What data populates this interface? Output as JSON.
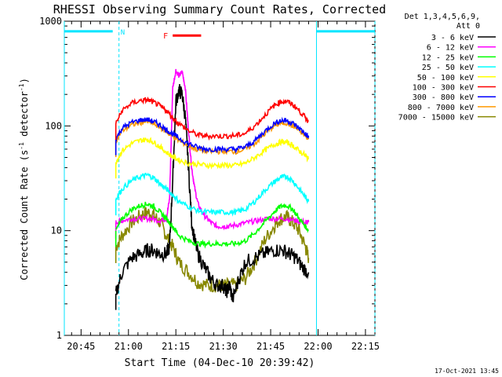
{
  "chart_data": {
    "type": "line",
    "title": "RHESSI Observing Summary Count Rates, Corrected",
    "xlabel": "Start Time (04-Dec-10 20:39:42)",
    "ylabel": "Corrected Count Rate (s",
    "ylabel_sup1": "-1",
    "ylabel_mid": " detector",
    "ylabel_sup2": "-1",
    "ylabel_end": ")",
    "y_scale": "log",
    "ylim": [
      1,
      1000
    ],
    "y_ticks": [
      {
        "value": 1,
        "label": "1"
      },
      {
        "value": 10,
        "label": "10"
      },
      {
        "value": 100,
        "label": "100"
      },
      {
        "value": 1000,
        "label": "1000"
      }
    ],
    "xlim_minutes": [
      39.7,
      138.0
    ],
    "x_ticks": [
      {
        "minute": 45,
        "label": "20:45"
      },
      {
        "minute": 60,
        "label": "21:00"
      },
      {
        "minute": 75,
        "label": "21:15"
      },
      {
        "minute": 90,
        "label": "21:30"
      },
      {
        "minute": 105,
        "label": "21:45"
      },
      {
        "minute": 120,
        "label": "22:00"
      },
      {
        "minute": 135,
        "label": "22:15"
      }
    ],
    "legend_placement": "top-right",
    "legend_header": [
      "Det 1,3,4,5,6,9,",
      "Att 0"
    ],
    "footer_date": "17-Oct-2021 13:45",
    "night_flag": {
      "label": "N",
      "color": "#00e5ff",
      "start": [
        39.7,
        57.0
      ],
      "end": [
        119.5,
        138.0
      ],
      "level": 800
    },
    "flare_flag": {
      "label": "F",
      "color": "#ff0000",
      "start": 74.0,
      "end": 83.0,
      "level": 730
    },
    "data_interval": [
      56.0,
      120.0
    ],
    "series": [
      {
        "name": "3 - 6 keV",
        "color": "#000000",
        "points": [
          [
            56,
            2.5
          ],
          [
            58,
            4
          ],
          [
            61,
            5.5
          ],
          [
            64,
            6
          ],
          [
            66,
            6.5
          ],
          [
            68,
            6.5
          ],
          [
            70,
            6
          ],
          [
            72,
            6
          ],
          [
            73,
            7
          ],
          [
            74,
            30
          ],
          [
            75,
            170
          ],
          [
            76,
            220
          ],
          [
            77,
            200
          ],
          [
            78,
            120
          ],
          [
            79,
            40
          ],
          [
            80,
            12
          ],
          [
            81,
            8
          ],
          [
            82,
            6
          ],
          [
            84,
            4.5
          ],
          [
            86,
            3.5
          ],
          [
            88,
            3
          ],
          [
            90,
            3
          ],
          [
            91,
            2.6
          ],
          [
            92,
            3
          ],
          [
            93,
            2.2
          ],
          [
            95,
            3.5
          ],
          [
            97,
            5
          ],
          [
            100,
            5.5
          ],
          [
            103,
            6
          ],
          [
            106,
            6.5
          ],
          [
            109,
            6.5
          ],
          [
            111,
            6
          ],
          [
            113,
            5.5
          ],
          [
            115,
            4.5
          ],
          [
            117,
            4
          ]
        ]
      },
      {
        "name": "6 - 12 keV",
        "color": "#ff00ff",
        "points": [
          [
            56,
            12
          ],
          [
            58,
            12.5
          ],
          [
            61,
            13
          ],
          [
            64,
            13
          ],
          [
            67,
            13
          ],
          [
            70,
            12.5
          ],
          [
            72,
            13
          ],
          [
            73,
            20
          ],
          [
            74,
            230
          ],
          [
            75,
            340
          ],
          [
            76,
            300
          ],
          [
            77,
            330
          ],
          [
            78,
            230
          ],
          [
            79,
            90
          ],
          [
            80,
            40
          ],
          [
            81,
            25
          ],
          [
            82,
            18
          ],
          [
            84,
            14
          ],
          [
            86,
            12
          ],
          [
            88,
            11
          ],
          [
            90,
            11
          ],
          [
            92,
            11
          ],
          [
            95,
            11.5
          ],
          [
            98,
            12
          ],
          [
            101,
            12.5
          ],
          [
            104,
            13
          ],
          [
            107,
            13
          ],
          [
            110,
            13
          ],
          [
            113,
            12.5
          ],
          [
            116,
            12
          ],
          [
            117,
            12
          ]
        ]
      },
      {
        "name": "12 - 25 keV",
        "color": "#00ff00",
        "points": [
          [
            56,
            10
          ],
          [
            58,
            13
          ],
          [
            61,
            16
          ],
          [
            64,
            17.5
          ],
          [
            66,
            18
          ],
          [
            68,
            17
          ],
          [
            70,
            15
          ],
          [
            72,
            13
          ],
          [
            74,
            11
          ],
          [
            76,
            9
          ],
          [
            79,
            8
          ],
          [
            82,
            7.5
          ],
          [
            85,
            7.5
          ],
          [
            88,
            7.5
          ],
          [
            91,
            7.5
          ],
          [
            94,
            7.5
          ],
          [
            97,
            8
          ],
          [
            100,
            9.5
          ],
          [
            103,
            12
          ],
          [
            106,
            15
          ],
          [
            108,
            17
          ],
          [
            110,
            17.5
          ],
          [
            112,
            16
          ],
          [
            114,
            13
          ],
          [
            116,
            11
          ],
          [
            117,
            10
          ]
        ]
      },
      {
        "name": "25 - 50 keV",
        "color": "#00ffff",
        "points": [
          [
            56,
            20
          ],
          [
            58,
            25
          ],
          [
            61,
            30
          ],
          [
            64,
            33
          ],
          [
            66,
            34
          ],
          [
            68,
            32
          ],
          [
            70,
            28
          ],
          [
            72,
            25
          ],
          [
            74,
            22
          ],
          [
            76,
            19
          ],
          [
            79,
            17
          ],
          [
            82,
            15.5
          ],
          [
            85,
            15
          ],
          [
            88,
            15
          ],
          [
            91,
            15
          ],
          [
            94,
            15
          ],
          [
            97,
            16
          ],
          [
            100,
            19
          ],
          [
            103,
            24
          ],
          [
            106,
            29
          ],
          [
            108,
            32
          ],
          [
            110,
            33
          ],
          [
            112,
            30
          ],
          [
            114,
            25
          ],
          [
            116,
            21
          ],
          [
            117,
            19
          ]
        ]
      },
      {
        "name": "50 - 100 keV",
        "color": "#ffff00",
        "points": [
          [
            56,
            45
          ],
          [
            58,
            58
          ],
          [
            61,
            68
          ],
          [
            64,
            73
          ],
          [
            66,
            74
          ],
          [
            68,
            70
          ],
          [
            70,
            63
          ],
          [
            72,
            56
          ],
          [
            74,
            51
          ],
          [
            76,
            47
          ],
          [
            79,
            44
          ],
          [
            82,
            43
          ],
          [
            85,
            42
          ],
          [
            88,
            42
          ],
          [
            91,
            42
          ],
          [
            94,
            42
          ],
          [
            97,
            44
          ],
          [
            100,
            50
          ],
          [
            103,
            58
          ],
          [
            106,
            66
          ],
          [
            108,
            70
          ],
          [
            110,
            70
          ],
          [
            112,
            65
          ],
          [
            114,
            58
          ],
          [
            116,
            52
          ],
          [
            117,
            48
          ]
        ]
      },
      {
        "name": "100 - 300 keV",
        "color": "#ff0000",
        "points": [
          [
            56,
            105
          ],
          [
            58,
            140
          ],
          [
            61,
            165
          ],
          [
            64,
            175
          ],
          [
            66,
            177
          ],
          [
            68,
            168
          ],
          [
            70,
            155
          ],
          [
            72,
            140
          ],
          [
            74,
            120
          ],
          [
            76,
            105
          ],
          [
            79,
            90
          ],
          [
            82,
            82
          ],
          [
            85,
            80
          ],
          [
            88,
            80
          ],
          [
            91,
            80
          ],
          [
            94,
            81
          ],
          [
            97,
            85
          ],
          [
            100,
            100
          ],
          [
            103,
            125
          ],
          [
            106,
            155
          ],
          [
            108,
            170
          ],
          [
            110,
            172
          ],
          [
            112,
            160
          ],
          [
            114,
            140
          ],
          [
            116,
            120
          ],
          [
            117,
            110
          ]
        ]
      },
      {
        "name": "300 - 800 keV",
        "color": "#0000ff",
        "points": [
          [
            56,
            75
          ],
          [
            58,
            95
          ],
          [
            61,
            108
          ],
          [
            64,
            114
          ],
          [
            66,
            115
          ],
          [
            68,
            110
          ],
          [
            70,
            102
          ],
          [
            72,
            92
          ],
          [
            74,
            84
          ],
          [
            76,
            76
          ],
          [
            79,
            68
          ],
          [
            82,
            62
          ],
          [
            85,
            60
          ],
          [
            88,
            60
          ],
          [
            91,
            60
          ],
          [
            94,
            60
          ],
          [
            97,
            63
          ],
          [
            100,
            72
          ],
          [
            103,
            88
          ],
          [
            106,
            105
          ],
          [
            108,
            112
          ],
          [
            110,
            113
          ],
          [
            112,
            106
          ],
          [
            114,
            95
          ],
          [
            116,
            84
          ],
          [
            117,
            78
          ]
        ]
      },
      {
        "name": "800 - 7000 keV",
        "color": "#ff9900",
        "points": [
          [
            56,
            72
          ],
          [
            58,
            90
          ],
          [
            61,
            102
          ],
          [
            64,
            108
          ],
          [
            66,
            110
          ],
          [
            68,
            105
          ],
          [
            70,
            97
          ],
          [
            72,
            88
          ],
          [
            74,
            80
          ],
          [
            76,
            72
          ],
          [
            79,
            65
          ],
          [
            82,
            59
          ],
          [
            85,
            57
          ],
          [
            88,
            57
          ],
          [
            91,
            57
          ],
          [
            94,
            57
          ],
          [
            97,
            60
          ],
          [
            100,
            68
          ],
          [
            103,
            83
          ],
          [
            106,
            100
          ],
          [
            108,
            106
          ],
          [
            110,
            107
          ],
          [
            112,
            100
          ],
          [
            114,
            90
          ],
          [
            116,
            80
          ],
          [
            117,
            75
          ]
        ]
      },
      {
        "name": "7000 - 15000 keV",
        "color": "#888800",
        "points": [
          [
            56,
            7
          ],
          [
            58,
            9
          ],
          [
            61,
            12
          ],
          [
            64,
            14
          ],
          [
            66,
            15
          ],
          [
            68,
            14
          ],
          [
            70,
            12
          ],
          [
            72,
            9
          ],
          [
            74,
            7
          ],
          [
            76,
            5
          ],
          [
            79,
            4
          ],
          [
            82,
            3.2
          ],
          [
            85,
            3
          ],
          [
            88,
            3
          ],
          [
            91,
            3
          ],
          [
            94,
            3
          ],
          [
            97,
            3.5
          ],
          [
            100,
            5
          ],
          [
            103,
            8
          ],
          [
            106,
            11
          ],
          [
            108,
            13
          ],
          [
            110,
            13.5
          ],
          [
            112,
            12
          ],
          [
            114,
            10
          ],
          [
            116,
            7
          ],
          [
            117,
            5.5
          ]
        ]
      }
    ]
  }
}
